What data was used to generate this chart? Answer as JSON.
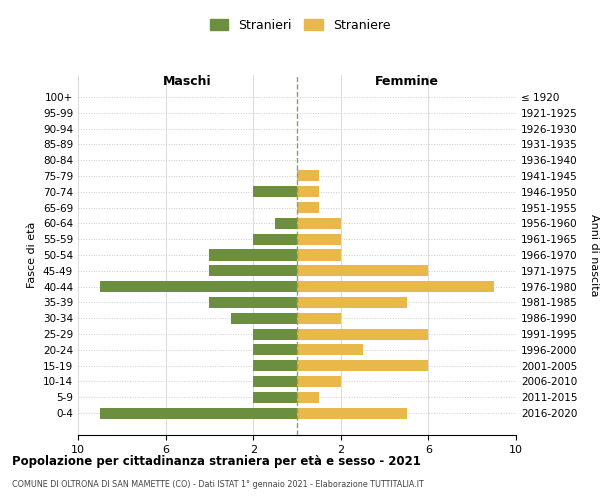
{
  "age_groups": [
    "100+",
    "95-99",
    "90-94",
    "85-89",
    "80-84",
    "75-79",
    "70-74",
    "65-69",
    "60-64",
    "55-59",
    "50-54",
    "45-49",
    "40-44",
    "35-39",
    "30-34",
    "25-29",
    "20-24",
    "15-19",
    "10-14",
    "5-9",
    "0-4"
  ],
  "birth_years": [
    "≤ 1920",
    "1921-1925",
    "1926-1930",
    "1931-1935",
    "1936-1940",
    "1941-1945",
    "1946-1950",
    "1951-1955",
    "1956-1960",
    "1961-1965",
    "1966-1970",
    "1971-1975",
    "1976-1980",
    "1981-1985",
    "1986-1990",
    "1991-1995",
    "1996-2000",
    "2001-2005",
    "2006-2010",
    "2011-2015",
    "2016-2020"
  ],
  "males": [
    0,
    0,
    0,
    0,
    0,
    0,
    2,
    0,
    1,
    2,
    4,
    4,
    9,
    4,
    3,
    2,
    2,
    2,
    2,
    2,
    9
  ],
  "females": [
    0,
    0,
    0,
    0,
    0,
    1,
    1,
    1,
    2,
    2,
    2,
    6,
    9,
    5,
    2,
    6,
    3,
    6,
    2,
    1,
    5
  ],
  "male_color": "#6b8f3e",
  "female_color": "#e8b84b",
  "center_line_color": "#999966",
  "background_color": "#ffffff",
  "grid_color": "#cccccc",
  "title": "Popolazione per cittadinanza straniera per età e sesso - 2021",
  "subtitle": "COMUNE DI OLTRONA DI SAN MAMETTE (CO) - Dati ISTAT 1° gennaio 2021 - Elaborazione TUTTITALIA.IT",
  "xlabel_left": "Maschi",
  "xlabel_right": "Femmine",
  "ylabel_left": "Fasce di età",
  "ylabel_right": "Anni di nascita",
  "legend_male": "Stranieri",
  "legend_female": "Straniere",
  "xlim": 10
}
